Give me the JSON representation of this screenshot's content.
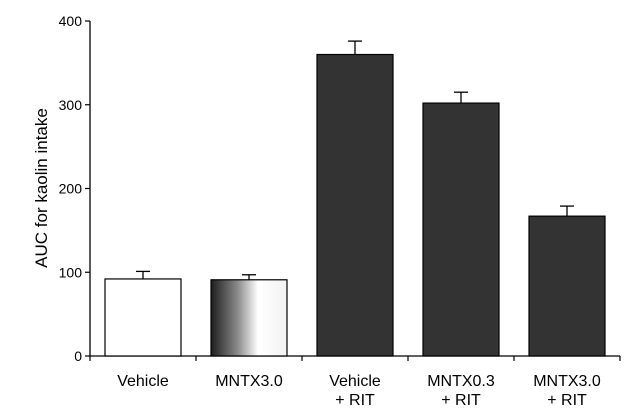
{
  "chart_data": {
    "type": "bar",
    "title": "",
    "xlabel": "",
    "ylabel": "AUC for kaolin intake",
    "ylim": [
      0,
      400
    ],
    "yticks": [
      0,
      100,
      200,
      300,
      400
    ],
    "grid": false,
    "categories": [
      {
        "line1": "Vehicle",
        "line2": ""
      },
      {
        "line1": "MNTX3.0",
        "line2": ""
      },
      {
        "line1": "Vehicle",
        "line2": "+ RIT"
      },
      {
        "line1": "MNTX0.3",
        "line2": "+ RIT"
      },
      {
        "line1": "MNTX3.0",
        "line2": "+ RIT"
      }
    ],
    "values": [
      92,
      91,
      360,
      302,
      167
    ],
    "errors": [
      9,
      6,
      16,
      13,
      12
    ],
    "fills": [
      "white",
      "gradient",
      "#333333",
      "#333333",
      "#333333"
    ]
  }
}
